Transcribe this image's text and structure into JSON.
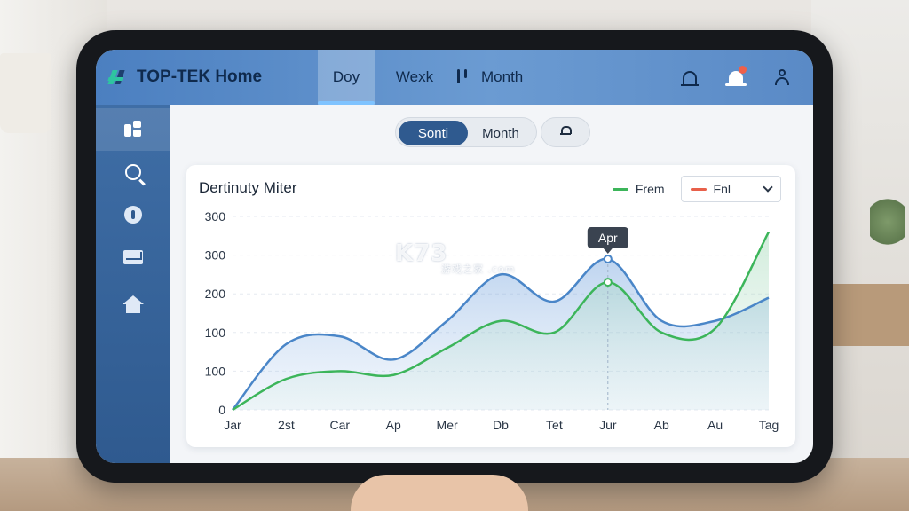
{
  "app": {
    "title": "TOP-TEK Home",
    "tabs": [
      {
        "label": "Doy",
        "active": true
      },
      {
        "label": "Wexk",
        "active": false
      },
      {
        "label": "Month",
        "active": false
      }
    ]
  },
  "header_icons": [
    "bell-icon",
    "notification-bell-icon",
    "user-icon"
  ],
  "sidebar": {
    "items": [
      {
        "icon": "dashboard-icon",
        "active": true
      },
      {
        "icon": "search-icon",
        "active": false
      },
      {
        "icon": "info-icon",
        "active": false
      },
      {
        "icon": "mail-icon",
        "active": false
      },
      {
        "icon": "home-icon",
        "active": false
      }
    ]
  },
  "segment": {
    "options": [
      "Sonti",
      "Month"
    ],
    "selected": "Sonti",
    "extra_icon": "lock-icon"
  },
  "card": {
    "title": "Dertinuty Miter",
    "legend": [
      {
        "label": "Frem",
        "color": "#3cb55a"
      },
      {
        "label": "Fnl",
        "color": "#e8604a"
      }
    ]
  },
  "chart_data": {
    "type": "area",
    "title": "Dertinuty Miter",
    "categories": [
      "Jar",
      "2st",
      "Car",
      "Ap",
      "Mer",
      "Db",
      "Tet",
      "Jur",
      "Ab",
      "Au",
      "Tag"
    ],
    "y_tick_labels": [
      "0",
      "100",
      "100",
      "200",
      "300",
      "300"
    ],
    "ylim": [
      0,
      500
    ],
    "series": [
      {
        "color": "#4a86c8",
        "values": [
          0,
          170,
          190,
          130,
          230,
          350,
          280,
          390,
          230,
          230,
          290
        ]
      },
      {
        "color": "#3cb55a",
        "values": [
          0,
          80,
          100,
          90,
          160,
          230,
          200,
          330,
          200,
          210,
          460
        ]
      }
    ],
    "annotation": {
      "label": "Apr"
    },
    "grid": true,
    "legend_position": "top-right"
  },
  "watermark": {
    "text": "K73",
    "sub": "游戏之家 .com"
  }
}
